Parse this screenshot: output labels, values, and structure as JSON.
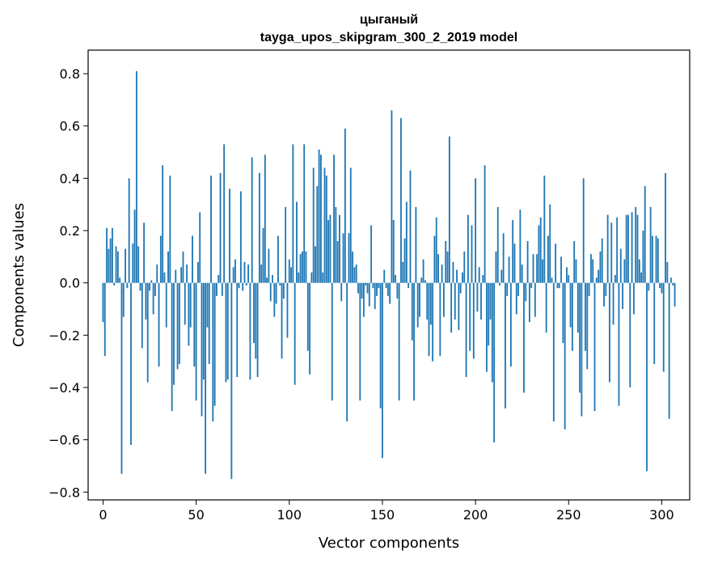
{
  "chart_data": {
    "type": "bar",
    "title": "цыганый",
    "subtitle": "tayga_upos_skipgram_300_2_2019 model",
    "xlabel": "Vector components",
    "ylabel": "Components values",
    "xlim": [
      -8,
      315
    ],
    "ylim": [
      -0.83,
      0.89
    ],
    "xticks": [
      0,
      50,
      100,
      150,
      200,
      250,
      300
    ],
    "xtick_labels": [
      "0",
      "50",
      "100",
      "150",
      "200",
      "250",
      "300"
    ],
    "yticks": [
      -0.8,
      -0.6,
      -0.4,
      -0.2,
      0.0,
      0.2,
      0.4,
      0.6,
      0.8
    ],
    "ytick_labels": [
      "−0.8",
      "−0.6",
      "−0.4",
      "−0.2",
      "0.0",
      "0.2",
      "0.4",
      "0.6",
      "0.8"
    ],
    "bar_color": "#1f77b4",
    "grid": false,
    "values": [
      -0.15,
      -0.28,
      0.21,
      0.13,
      0.17,
      0.21,
      -0.01,
      0.14,
      0.12,
      0.02,
      -0.73,
      -0.13,
      0.13,
      -0.02,
      0.4,
      -0.62,
      0.15,
      0.28,
      0.81,
      0.14,
      -0.03,
      -0.25,
      0.23,
      -0.14,
      -0.38,
      -0.03,
      0.01,
      -0.12,
      -0.05,
      0.07,
      -0.32,
      0.18,
      0.45,
      0.04,
      -0.17,
      0.12,
      0.41,
      -0.49,
      -0.39,
      0.05,
      -0.33,
      -0.31,
      0.06,
      0.12,
      -0.16,
      0.07,
      -0.24,
      -0.17,
      0.18,
      -0.32,
      -0.45,
      0.08,
      0.27,
      -0.51,
      -0.37,
      -0.73,
      -0.17,
      -0.31,
      0.41,
      -0.53,
      -0.47,
      -0.05,
      0.03,
      0.42,
      -0.05,
      0.53,
      -0.38,
      -0.37,
      0.36,
      -0.75,
      0.06,
      0.09,
      -0.36,
      -0.02,
      0.35,
      -0.03,
      0.08,
      -0.01,
      0.07,
      -0.37,
      0.48,
      -0.23,
      -0.29,
      -0.36,
      0.42,
      0.07,
      0.21,
      0.49,
      0.02,
      0.13,
      -0.07,
      0.03,
      -0.13,
      -0.08,
      0.18,
      -0.01,
      -0.29,
      -0.06,
      0.29,
      -0.21,
      0.09,
      0.06,
      0.53,
      -0.39,
      0.31,
      0.04,
      0.11,
      0.12,
      0.53,
      0.12,
      -0.26,
      -0.35,
      0.04,
      0.44,
      0.14,
      0.37,
      0.51,
      0.49,
      0.04,
      0.44,
      0.41,
      0.24,
      0.26,
      -0.45,
      0.49,
      0.29,
      0.16,
      0.26,
      -0.07,
      0.19,
      0.59,
      -0.53,
      0.19,
      0.44,
      0.12,
      0.06,
      0.07,
      -0.04,
      -0.45,
      -0.06,
      -0.13,
      -0.01,
      -0.04,
      -0.09,
      0.22,
      -0.02,
      -0.1,
      -0.05,
      -0.02,
      -0.48,
      -0.67,
      0.05,
      -0.02,
      -0.05,
      -0.08,
      0.66,
      0.24,
      0.03,
      -0.06,
      -0.45,
      0.63,
      0.08,
      0.17,
      0.31,
      -0.02,
      0.43,
      -0.22,
      -0.45,
      0.29,
      -0.17,
      -0.13,
      0.02,
      0.09,
      0.01,
      -0.14,
      -0.28,
      -0.16,
      -0.3,
      0.18,
      0.25,
      0.11,
      -0.28,
      0.07,
      -0.13,
      0.16,
      0.12,
      0.56,
      -0.19,
      0.08,
      -0.14,
      0.05,
      -0.18,
      -0.04,
      0.04,
      0.12,
      -0.36,
      0.26,
      -0.26,
      0.22,
      -0.29,
      0.4,
      -0.11,
      0.06,
      -0.14,
      0.03,
      0.45,
      -0.34,
      -0.24,
      -0.14,
      -0.38,
      -0.61,
      0.12,
      0.29,
      -0.01,
      0.05,
      0.19,
      -0.48,
      -0.05,
      0.1,
      -0.32,
      0.24,
      0.15,
      -0.12,
      -0.05,
      0.28,
      0.07,
      -0.42,
      -0.07,
      0.16,
      -0.15,
      -0.02,
      0.11,
      -0.13,
      0.11,
      0.22,
      0.25,
      0.09,
      0.41,
      -0.19,
      0.18,
      0.3,
      0.02,
      -0.53,
      0.15,
      -0.02,
      -0.02,
      0.1,
      -0.23,
      -0.56,
      0.06,
      0.03,
      -0.17,
      -0.26,
      0.16,
      0.09,
      -0.19,
      -0.42,
      -0.51,
      0.4,
      -0.26,
      -0.33,
      -0.05,
      0.11,
      0.09,
      -0.49,
      0.02,
      0.05,
      0.12,
      0.17,
      -0.09,
      -0.05,
      0.26,
      -0.38,
      0.23,
      -0.16,
      0.03,
      0.25,
      -0.47,
      0.13,
      -0.1,
      0.09,
      0.26,
      0.26,
      -0.4,
      0.27,
      -0.12,
      0.29,
      0.26,
      0.09,
      0.04,
      0.2,
      0.37,
      -0.72,
      -0.03,
      0.29,
      0.18,
      -0.31,
      0.18,
      0.17,
      -0.02,
      -0.04,
      -0.34,
      0.42,
      0.08,
      -0.52,
      0.02,
      -0.01,
      -0.09
    ]
  }
}
